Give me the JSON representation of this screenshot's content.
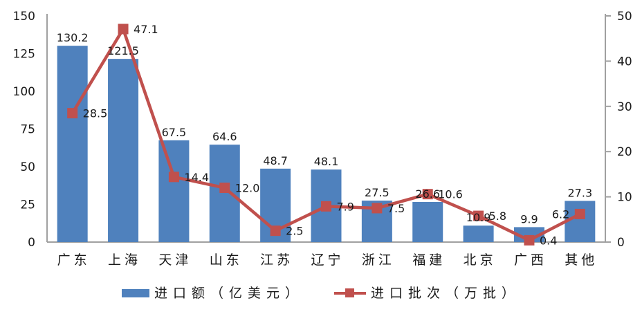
{
  "chart_data": {
    "type": "bar",
    "subtype": "bar-line-combo",
    "title": "",
    "categories": [
      "广东",
      "上海",
      "天津",
      "山东",
      "江苏",
      "辽宁",
      "浙江",
      "福建",
      "北京",
      "广西",
      "其他"
    ],
    "series": [
      {
        "name": "进口额（亿美元）",
        "type": "bar",
        "axis": "left",
        "color": "#4F81BD",
        "values": [
          130.2,
          121.5,
          67.5,
          64.6,
          48.7,
          48.1,
          27.5,
          26.6,
          10.9,
          9.9,
          27.3
        ],
        "labels": [
          "130.2",
          "121.5",
          "67.5",
          "64.6",
          "48.7",
          "48.1",
          "27.5",
          "26.6",
          "10.9",
          "9.9",
          "27.3"
        ]
      },
      {
        "name": "进口批次（万批）",
        "type": "line",
        "axis": "right",
        "color": "#C0504D",
        "values": [
          28.5,
          47.1,
          14.4,
          12.0,
          2.5,
          7.9,
          7.5,
          10.6,
          5.8,
          0.4,
          6.2
        ],
        "labels": [
          "28.5",
          "47.1",
          "14.4",
          "12.0",
          "2.5",
          "7.9",
          "7.5",
          "10.6",
          "5.8",
          "0.4",
          "6.2"
        ]
      }
    ],
    "left_axis": {
      "min": 0,
      "max": 150,
      "step": 25,
      "ticks": [
        "0",
        "25",
        "50",
        "75",
        "100",
        "125",
        "150"
      ]
    },
    "right_axis": {
      "min": 0,
      "max": 50,
      "step": 10,
      "ticks": [
        "0",
        "10",
        "20",
        "30",
        "40",
        "50"
      ]
    },
    "grid": false,
    "legend_position": "bottom",
    "colors": {
      "bar": "#4F81BD",
      "line": "#C0504D",
      "axis_line": "#A0A0A0",
      "text": "#1a1a1a"
    }
  }
}
